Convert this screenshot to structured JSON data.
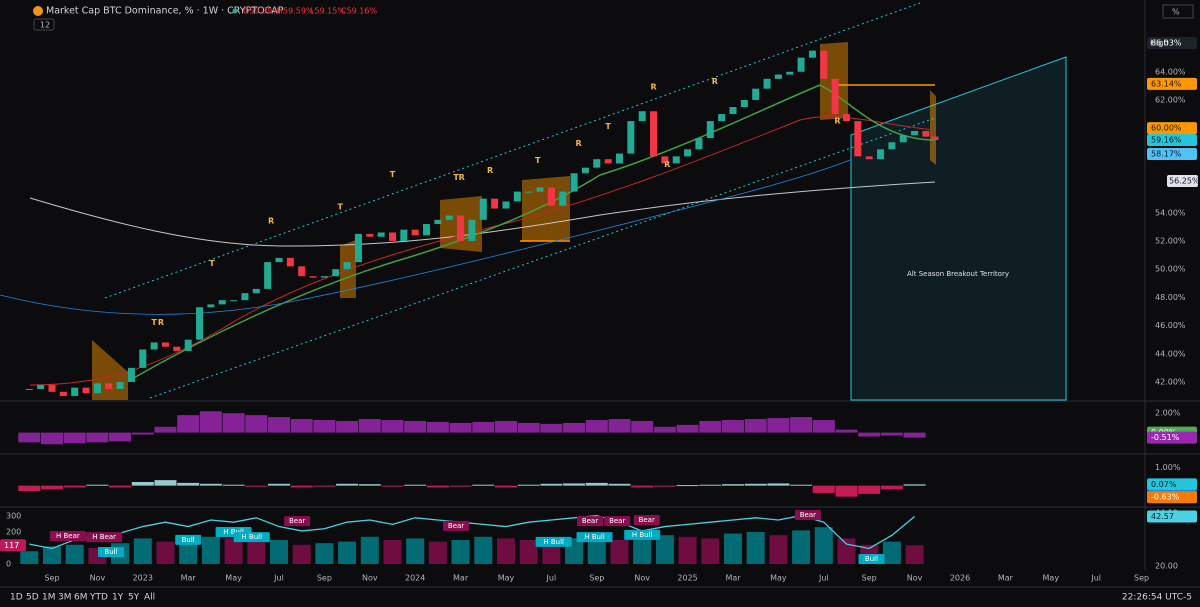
{
  "header": {
    "symbol": "Market Cap BTC Dominance, % · 1W · CRYPTOCAP",
    "ohlc": [
      "O59.39%",
      "H59.59%",
      "L59.15%",
      "C59.16%"
    ],
    "interval_count": "12",
    "scale_mode": "%"
  },
  "toolbar": {
    "ranges": [
      "1D",
      "5D",
      "1M",
      "3M",
      "6M",
      "YTD",
      "1Y",
      "5Y",
      "All"
    ],
    "clock": "22:26:54 UTC-5"
  },
  "chart_data": [
    {
      "type": "candlestick",
      "up_color": "#22ab94",
      "down_color": "#f23645",
      "annotation": "Alt Season Breakout Territory",
      "xlim": [
        -1.29,
        49.15
      ],
      "xticks": [
        {
          "value": 1,
          "label": "Sep"
        },
        {
          "value": 3,
          "label": "Nov"
        },
        {
          "value": 5,
          "label": "2023"
        },
        {
          "value": 7,
          "label": "Mar"
        },
        {
          "value": 9,
          "label": "May"
        },
        {
          "value": 11,
          "label": "Jul"
        },
        {
          "value": 13,
          "label": "Sep"
        },
        {
          "value": 15,
          "label": "Nov"
        },
        {
          "value": 17,
          "label": "2024"
        },
        {
          "value": 19,
          "label": "Mar"
        },
        {
          "value": 21,
          "label": "May"
        },
        {
          "value": 23,
          "label": "Jul"
        },
        {
          "value": 25,
          "label": "Sep"
        },
        {
          "value": 27,
          "label": "Nov"
        },
        {
          "value": 29,
          "label": "2025"
        },
        {
          "value": 31,
          "label": "Mar"
        },
        {
          "value": 33,
          "label": "May"
        },
        {
          "value": 35,
          "label": "Jul"
        },
        {
          "value": 37,
          "label": "Sep"
        },
        {
          "value": 39,
          "label": "Nov"
        },
        {
          "value": 41,
          "label": "2026"
        },
        {
          "value": 43,
          "label": "Mar"
        },
        {
          "value": 45,
          "label": "May"
        },
        {
          "value": 47,
          "label": "Jul"
        },
        {
          "value": 49,
          "label": "Sep"
        }
      ],
      "ylim": [
        40.72,
        69.09
      ],
      "yticks": [
        {
          "value": 64,
          "label": "64.00%"
        },
        {
          "value": 62,
          "label": "62.00%"
        },
        {
          "value": 54,
          "label": "54.00%"
        },
        {
          "value": 52,
          "label": "52.00%"
        },
        {
          "value": 50,
          "label": "50.00%"
        },
        {
          "value": 48,
          "label": "48.00%"
        },
        {
          "value": 46,
          "label": "46.00%"
        },
        {
          "value": 44,
          "label": "44.00%"
        },
        {
          "value": 42,
          "label": "42.00%"
        }
      ],
      "high_label": "High",
      "badges": [
        {
          "value": 66.03,
          "label": "66.03%",
          "color": "#1e222d"
        },
        {
          "value": 63.14,
          "label": "63.14%",
          "color": "#ff9800"
        },
        {
          "value": 60.0,
          "label": "60.00%",
          "color": "#ff9800"
        },
        {
          "value": 59.16,
          "label": "59.16%",
          "color": "#26c6da"
        },
        {
          "value": 58.17,
          "label": "58.17%",
          "color": "#4fc3f7"
        },
        {
          "value": 56.25,
          "label": "56.25%",
          "color": "#e0e3eb"
        }
      ],
      "x": [
        0,
        0.5,
        1,
        1.5,
        2,
        2.5,
        3,
        3.5,
        4,
        4.5,
        5,
        5.5,
        6,
        6.5,
        7,
        7.5,
        8,
        8.5,
        9,
        9.5,
        10,
        10.5,
        11,
        11.5,
        12,
        12.5,
        13,
        13.5,
        14,
        14.5,
        15,
        15.5,
        16,
        16.5,
        17,
        17.5,
        18,
        18.5,
        19,
        19.5,
        20,
        20.5,
        21,
        21.5,
        22,
        22.5,
        23,
        23.5,
        24,
        24.5,
        25,
        25.5,
        26,
        26.5,
        27,
        27.5,
        28,
        28.5,
        29,
        29.5,
        30,
        30.5,
        31,
        31.5,
        32,
        32.5,
        33,
        33.5,
        34,
        34.5,
        35,
        35.5,
        36,
        36.5,
        37,
        37.5,
        38,
        38.5,
        39,
        39.5,
        39.9
      ],
      "close": [
        41.5,
        41.8,
        41.3,
        41.0,
        41.6,
        41.2,
        41.9,
        41.5,
        42.0,
        43.0,
        44.3,
        44.8,
        44.5,
        44.2,
        45.0,
        47.3,
        47.5,
        47.8,
        47.8,
        48.3,
        48.6,
        50.5,
        50.8,
        50.2,
        49.5,
        49.4,
        49.5,
        50.0,
        50.5,
        52.5,
        52.3,
        52.6,
        52.0,
        52.8,
        52.4,
        53.2,
        53.5,
        53.8,
        52.0,
        53.5,
        55.0,
        54.3,
        54.8,
        55.5,
        55.5,
        55.8,
        54.5,
        55.5,
        56.8,
        57.2,
        57.8,
        57.5,
        58.2,
        60.5,
        61.2,
        58.0,
        57.5,
        58.0,
        58.5,
        59.3,
        60.5,
        61.0,
        61.5,
        62.0,
        62.8,
        63.5,
        63.8,
        64.0,
        65.0,
        65.5,
        63.5,
        61.0,
        60.5,
        58.0,
        57.8,
        58.5,
        59.0,
        59.5,
        59.8,
        59.4,
        59.16
      ],
      "markers": [
        {
          "x": 5.5,
          "y": 45.5,
          "label": "T"
        },
        {
          "x": 5.8,
          "y": 45.5,
          "label": "R"
        },
        {
          "x": 8.05,
          "y": 49.7,
          "label": "T"
        },
        {
          "x": 10.65,
          "y": 52.7,
          "label": "R"
        },
        {
          "x": 13.7,
          "y": 53.7,
          "label": "T"
        },
        {
          "x": 16.0,
          "y": 56.0,
          "label": "T"
        },
        {
          "x": 18.8,
          "y": 55.8,
          "label": "T"
        },
        {
          "x": 19.05,
          "y": 55.8,
          "label": "R"
        },
        {
          "x": 20.3,
          "y": 56.3,
          "label": "R"
        },
        {
          "x": 22.4,
          "y": 57.0,
          "label": "T"
        },
        {
          "x": 24.2,
          "y": 58.2,
          "label": "R"
        },
        {
          "x": 25.5,
          "y": 59.4,
          "label": "T"
        },
        {
          "x": 27.5,
          "y": 62.2,
          "label": "R"
        },
        {
          "x": 28.1,
          "y": 56.7,
          "label": "R"
        },
        {
          "x": 30.2,
          "y": 62.6,
          "label": "R"
        },
        {
          "x": 35.6,
          "y": 59.8,
          "label": "R"
        }
      ]
    },
    {
      "type": "histogram",
      "color": "#9c27b0",
      "ylim": [
        -2.1,
        3.26
      ],
      "yticks": [
        {
          "value": 2,
          "label": "2.00%"
        }
      ],
      "badges": [
        {
          "value": 0,
          "label": "0.00%",
          "color": "#4caf50"
        },
        {
          "value": -0.51,
          "label": "-0.51%",
          "color": "#9c27b0"
        }
      ],
      "x": [
        0,
        1,
        2,
        3,
        4,
        5,
        6,
        7,
        8,
        9,
        10,
        11,
        12,
        13,
        14,
        15,
        16,
        17,
        18,
        19,
        20,
        21,
        22,
        23,
        24,
        25,
        26,
        27,
        28,
        29,
        30,
        31,
        32,
        33,
        34,
        35,
        36,
        37,
        38,
        39
      ],
      "values": [
        -1.0,
        -1.2,
        -1.1,
        -1.0,
        -0.9,
        -0.2,
        0.6,
        1.8,
        2.2,
        2.0,
        1.8,
        1.6,
        1.4,
        1.3,
        1.2,
        1.4,
        1.3,
        1.2,
        1.1,
        1.0,
        1.1,
        1.2,
        1.0,
        0.9,
        1.0,
        1.3,
        1.4,
        1.2,
        0.6,
        0.8,
        1.2,
        1.3,
        1.4,
        1.5,
        1.6,
        1.3,
        0.3,
        -0.4,
        -0.3,
        -0.51
      ]
    },
    {
      "type": "histogram",
      "pos_color": "#b2ebf2",
      "neg_color": "#e91e63",
      "ylim": [
        -1.11,
        1.67
      ],
      "yticks": [
        {
          "value": 1,
          "label": "1.00%"
        }
      ],
      "badges": [
        {
          "value": 0.07,
          "label": "0.07%",
          "color": "#26c6da"
        },
        {
          "value": -0.56,
          "label": "-0.56%",
          "color": "#1e88e5"
        },
        {
          "value": -0.63,
          "label": "-0.63%",
          "color": "#f57c00"
        }
      ],
      "x": [
        0,
        1,
        2,
        3,
        4,
        5,
        6,
        7,
        8,
        9,
        10,
        11,
        12,
        13,
        14,
        15,
        16,
        17,
        18,
        19,
        20,
        21,
        22,
        23,
        24,
        25,
        26,
        27,
        28,
        29,
        30,
        31,
        32,
        33,
        34,
        35,
        36,
        37,
        38,
        39
      ],
      "values": [
        -0.3,
        -0.2,
        -0.1,
        0.05,
        -0.1,
        0.2,
        0.3,
        0.15,
        0.1,
        0.05,
        -0.05,
        0.1,
        -0.1,
        -0.05,
        0.1,
        0.08,
        -0.05,
        0.05,
        -0.1,
        -0.05,
        0.05,
        -0.1,
        0.05,
        0.1,
        0.12,
        0.15,
        0.1,
        -0.1,
        -0.05,
        0.03,
        0.05,
        0.08,
        0.1,
        0.12,
        0.05,
        -0.4,
        -0.6,
        -0.45,
        -0.2,
        0.07
      ]
    },
    {
      "type": "bar-line",
      "up_color": "#00838f",
      "down_color": "#880e4f",
      "line_color": "#4dd0e1",
      "ylim": [
        -37.5,
        350
      ],
      "yticks": [
        0,
        100,
        200,
        300
      ],
      "y2lim": [
        18.17,
        46.47
      ],
      "y2ticks": [
        {
          "value": 44.19,
          "label": "44.19"
        },
        {
          "value": 42.95,
          "label": "42.95"
        },
        {
          "value": 20,
          "label": "20.00"
        }
      ],
      "badges": [
        {
          "value": 117,
          "label": "117",
          "color": "#c2185b",
          "side": "left"
        },
        {
          "value": 42.57,
          "label": "42.57",
          "color": "#4dd0e1",
          "axis": "y2"
        }
      ],
      "x": [
        0,
        1,
        2,
        3,
        4,
        5,
        6,
        7,
        8,
        9,
        10,
        11,
        12,
        13,
        14,
        15,
        16,
        17,
        18,
        19,
        20,
        21,
        22,
        23,
        24,
        25,
        26,
        27,
        28,
        29,
        30,
        31,
        32,
        33,
        34,
        35,
        36,
        37,
        38,
        39
      ],
      "values": [
        80,
        110,
        120,
        100,
        130,
        160,
        140,
        150,
        170,
        160,
        140,
        150,
        120,
        130,
        140,
        170,
        150,
        160,
        140,
        150,
        170,
        160,
        150,
        140,
        160,
        170,
        150,
        160,
        180,
        170,
        160,
        190,
        200,
        180,
        210,
        230,
        160,
        120,
        140,
        117
      ],
      "line": [
        30,
        28,
        32,
        34,
        35,
        38,
        40,
        38,
        41,
        40,
        42,
        38,
        36,
        37,
        40,
        41,
        39,
        42,
        41,
        40,
        39,
        38,
        40,
        41,
        42,
        43,
        40,
        36,
        38,
        39,
        40,
        41,
        42,
        41,
        43,
        40,
        30,
        28,
        34,
        42.57
      ],
      "annotations": [
        {
          "x": 1.7,
          "y": 33.7,
          "label": "H Bear",
          "color": "#880e4f"
        },
        {
          "x": 3.3,
          "y": 33.2,
          "label": "H Bear",
          "color": "#880e4f"
        },
        {
          "x": 3.6,
          "y": 26.4,
          "label": "Bull",
          "color": "#00acc1"
        },
        {
          "x": 7.0,
          "y": 31.9,
          "label": "Bull",
          "color": "#00acc1"
        },
        {
          "x": 9.0,
          "y": 35.5,
          "label": "H Bull",
          "color": "#00acc1"
        },
        {
          "x": 9.8,
          "y": 33.2,
          "label": "H Bull",
          "color": "#00acc1"
        },
        {
          "x": 11.8,
          "y": 40.5,
          "label": "Bear",
          "color": "#880e4f"
        },
        {
          "x": 18.8,
          "y": 38.3,
          "label": "Bear",
          "color": "#880e4f"
        },
        {
          "x": 23.1,
          "y": 31.0,
          "label": "H Bull",
          "color": "#00acc1"
        },
        {
          "x": 24.7,
          "y": 40.5,
          "label": "Bear",
          "color": "#880e4f"
        },
        {
          "x": 24.9,
          "y": 33.2,
          "label": "H Bull",
          "color": "#00acc1"
        },
        {
          "x": 25.9,
          "y": 40.5,
          "label": "Bear",
          "color": "#880e4f"
        },
        {
          "x": 27.0,
          "y": 34.2,
          "label": "H Bull",
          "color": "#00acc1"
        },
        {
          "x": 27.2,
          "y": 41.0,
          "label": "Bear",
          "color": "#880e4f"
        },
        {
          "x": 34.3,
          "y": 43.3,
          "label": "Bear",
          "color": "#880e4f"
        },
        {
          "x": 37.1,
          "y": 23.2,
          "label": "Bull",
          "color": "#00acc1"
        }
      ]
    }
  ]
}
